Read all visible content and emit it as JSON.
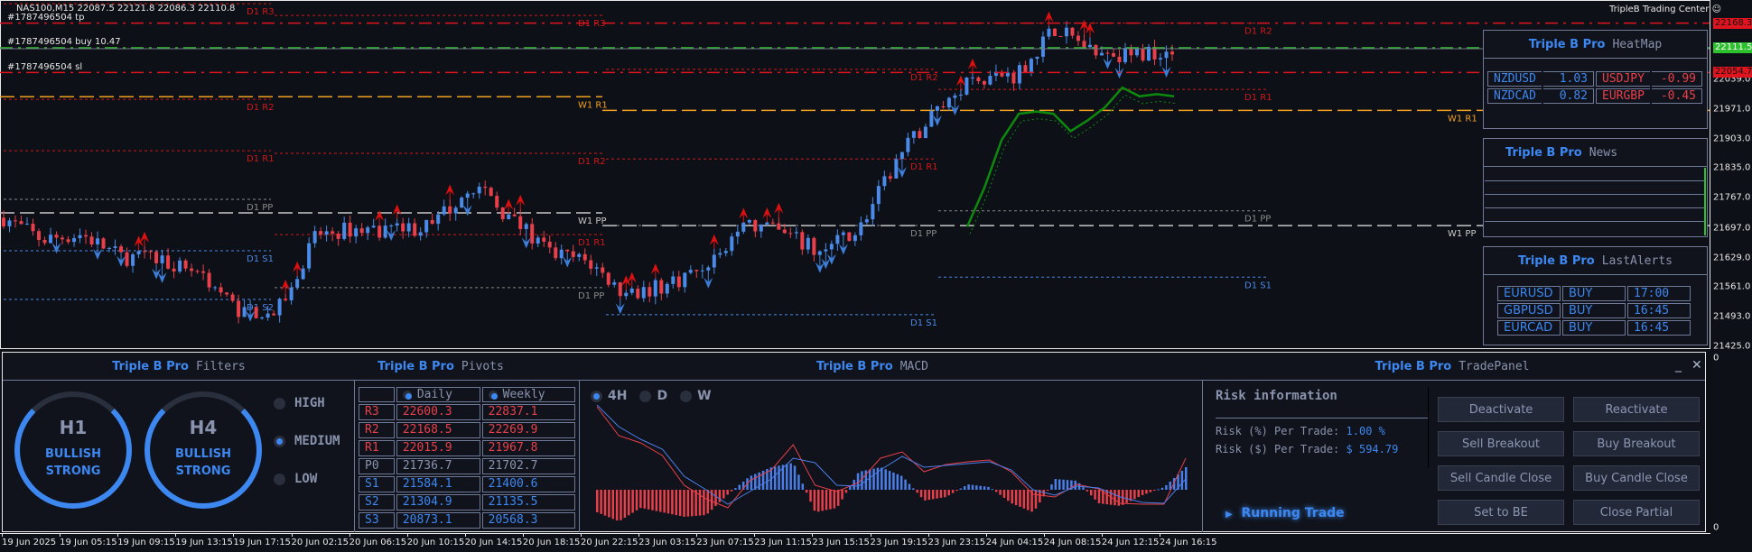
{
  "header": {
    "symbol_info": "NAS100,M15  22087.5 22121.8 22086.3 22110.8",
    "brand_center": "TripleB Trading Center",
    "brand_icon": "smiley-icon"
  },
  "trade_lines": [
    {
      "label": "#1787496504 tp",
      "price": 22168.3,
      "color": "#e0141e",
      "tag": "22168.3"
    },
    {
      "label": "#1787496504 buy 10.47",
      "price": 22111.5,
      "color": "#2ec02e",
      "tag": "22111.5"
    },
    {
      "label": "#1787496504 sl",
      "price": 22054.7,
      "color": "#e0141e",
      "tag": "22054.7"
    }
  ],
  "price_axis": {
    "labels": [
      "22039.0",
      "21971.0",
      "21903.0",
      "21835.0",
      "21767.0",
      "21697.0",
      "21629.0",
      "21561.0",
      "21493.0",
      "21425.0"
    ],
    "macd_zero_top": "0",
    "macd_zero_bottom": "0"
  },
  "weekly_levels": [
    {
      "label": "W1 R1",
      "prev": 21999,
      "curr": 21967.8,
      "color": "#f0a020"
    },
    {
      "label": "W1 PP",
      "prev": 21732,
      "curr": 21702.7,
      "color": "#c8c8c8"
    }
  ],
  "daily_levels": [
    [
      {
        "label": "D1 R3",
        "price": 22213
      },
      {
        "label": "D1 R2",
        "price": 21993
      },
      {
        "label": "D1 R1",
        "price": 21875
      },
      {
        "label": "D1 PP",
        "price": 21763
      },
      {
        "label": "D1 S1",
        "price": 21645
      },
      {
        "label": "D1 S2",
        "price": 21533
      }
    ],
    [
      {
        "label": "D1 R3",
        "price": 22186
      },
      {
        "label": "D1 R2",
        "price": 21869
      },
      {
        "label": "D1 R1",
        "price": 21682
      },
      {
        "label": "D1 PP",
        "price": 21560
      }
    ],
    [
      {
        "label": "D1 R2",
        "price": 22062
      },
      {
        "label": "D1 R1",
        "price": 21856
      },
      {
        "label": "D1 PP",
        "price": 21703
      },
      {
        "label": "D1 S1",
        "price": 21498
      }
    ],
    [
      {
        "label": "D1 R2",
        "price": 22168.5
      },
      {
        "label": "D1 R1",
        "price": 22015.9
      },
      {
        "label": "D1 PP",
        "price": 21736.7
      },
      {
        "label": "D1 S1",
        "price": 21584.1
      }
    ]
  ],
  "price_path": [
    21721,
    21670,
    21683,
    21631,
    21625,
    21600,
    21510,
    21500,
    21680,
    21695,
    21695,
    21700,
    21800,
    21720,
    21640,
    21620,
    21541,
    21565,
    21610,
    21705,
    21683,
    21640,
    21700,
    21862,
    21975,
    22045,
    22050,
    22157,
    22106,
    22093,
    22111
  ],
  "ma_path": [
    21700,
    21790,
    21900,
    21960,
    21965,
    21960,
    21920,
    21945,
    21975,
    22020,
    22000,
    22005,
    22000
  ],
  "colors": {
    "bull": "#4a8ae8",
    "bear": "#e8404a",
    "accent": "#3d87f0",
    "level_red": "#d01818",
    "level_blue": "#4a8ae8",
    "level_gray": "#8a8a8a",
    "ma": "#0d8a0d"
  },
  "heatmap": {
    "brand": "Triple B Pro",
    "title": "HeatMap",
    "rows": [
      [
        {
          "pair": "NZDUSD",
          "value": "1.03",
          "dir": "up"
        },
        {
          "pair": "USDJPY",
          "value": "-0.99",
          "dir": "down"
        }
      ],
      [
        {
          "pair": "NZDCAD",
          "value": "0.82",
          "dir": "up"
        },
        {
          "pair": "EURGBP",
          "value": "-0.45",
          "dir": "down"
        }
      ]
    ]
  },
  "news": {
    "brand": "Triple B Pro",
    "title": "News"
  },
  "alerts": {
    "brand": "Triple B Pro",
    "title": "LastAlerts",
    "rows": [
      [
        "EURUSD",
        "BUY",
        "17:00"
      ],
      [
        "GBPUSD",
        "BUY",
        "16:45"
      ],
      [
        "EURCAD",
        "BUY",
        "16:45"
      ]
    ]
  },
  "filters": {
    "brand": "Triple B Pro",
    "title": "Filters",
    "gauges": [
      {
        "tf": "H1",
        "line1": "BULLISH",
        "line2": "STRONG"
      },
      {
        "tf": "H4",
        "line1": "BULLISH",
        "line2": "STRONG"
      }
    ],
    "options": [
      {
        "label": "HIGH",
        "selected": false
      },
      {
        "label": "MEDIUM",
        "selected": true
      },
      {
        "label": "LOW",
        "selected": false
      }
    ]
  },
  "pivots": {
    "brand": "Triple B Pro",
    "title": "Pivots",
    "headers": [
      "Daily",
      "Weekly"
    ],
    "rows": [
      {
        "name": "R3",
        "daily": "22600.3",
        "weekly": "22837.1",
        "kind": "r"
      },
      {
        "name": "R2",
        "daily": "22168.5",
        "weekly": "22269.9",
        "kind": "r"
      },
      {
        "name": "R1",
        "daily": "22015.9",
        "weekly": "21967.8",
        "kind": "r"
      },
      {
        "name": "P0",
        "daily": "21736.7",
        "weekly": "21702.7",
        "kind": "p"
      },
      {
        "name": "S1",
        "daily": "21584.1",
        "weekly": "21400.6",
        "kind": "s"
      },
      {
        "name": "S2",
        "daily": "21304.9",
        "weekly": "21135.5",
        "kind": "s"
      },
      {
        "name": "S3",
        "daily": "20873.1",
        "weekly": "20568.3",
        "kind": "s"
      }
    ]
  },
  "macd": {
    "brand": "Triple B Pro",
    "title": "MACD",
    "timeframes": [
      {
        "label": "4H",
        "selected": true
      },
      {
        "label": "D",
        "selected": false
      },
      {
        "label": "W",
        "selected": false
      }
    ],
    "macd": [
      92,
      60,
      52,
      38,
      5,
      -10,
      -20,
      10,
      22,
      50,
      5,
      -2,
      8,
      35,
      42,
      20,
      28,
      31,
      33,
      20,
      -5,
      -8,
      6,
      1,
      -15,
      -16,
      -16,
      35
    ],
    "signal": [
      94,
      70,
      56,
      45,
      15,
      0,
      -16,
      -2,
      12,
      35,
      30,
      5,
      4,
      22,
      37,
      25,
      27,
      29,
      31,
      22,
      0,
      -6,
      4,
      2,
      -8,
      -14,
      -15,
      12
    ],
    "histogram": [
      -25,
      -35,
      -20,
      -25,
      -30,
      -28,
      -5,
      15,
      25,
      30,
      -25,
      -20,
      20,
      25,
      15,
      -12,
      -8,
      6,
      3,
      -15,
      -25,
      12,
      10,
      -15,
      -18,
      -6,
      3,
      25
    ]
  },
  "tradepanel": {
    "brand": "Triple B Pro",
    "title": "TradePanel",
    "risk_title": "Risk information",
    "risk_pct_label": "Risk (%) Per Trade:",
    "risk_pct_value": "1.00 %",
    "risk_usd_label": "Risk ($) Per Trade:",
    "risk_usd_value": "$ 594.79",
    "running_trade": "Running Trade",
    "buttons": [
      "Deactivate",
      "Reactivate",
      "Sell Breakout",
      "Buy Breakout",
      "Sell Candle Close",
      "Buy Candle Close",
      "Set to BE",
      "Close Partial"
    ]
  },
  "time_axis": [
    "19 Jun 2025",
    "19 Jun 05:15",
    "19 Jun 09:15",
    "19 Jun 13:15",
    "19 Jun 17:15",
    "20 Jun 02:15",
    "20 Jun 06:15",
    "20 Jun 10:15",
    "20 Jun 14:15",
    "20 Jun 18:15",
    "20 Jun 22:15",
    "23 Jun 03:15",
    "23 Jun 07:15",
    "23 Jun 11:15",
    "23 Jun 15:15",
    "23 Jun 19:15",
    "23 Jun 23:15",
    "24 Jun 04:15",
    "24 Jun 08:15",
    "24 Jun 12:15",
    "24 Jun 16:15"
  ]
}
